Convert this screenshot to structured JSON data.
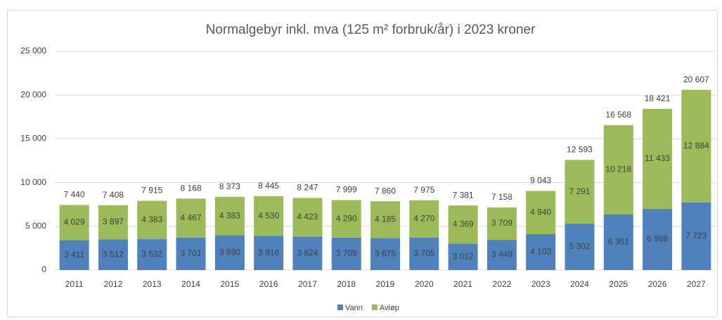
{
  "chart_data": {
    "type": "stacked_bar",
    "title": "Normalgebyr inkl. mva (125 m² forbruk/år) i 2023 kroner",
    "categories": [
      "2011",
      "2012",
      "2013",
      "2014",
      "2015",
      "2016",
      "2017",
      "2018",
      "2019",
      "2020",
      "2021",
      "2022",
      "2023",
      "2024",
      "2025",
      "2026",
      "2027"
    ],
    "series": [
      {
        "name": "Vann",
        "color": "#4f81bd",
        "values": [
          3411,
          3512,
          3532,
          3701,
          3990,
          3916,
          3824,
          3709,
          3675,
          3705,
          3012,
          3449,
          4103,
          5302,
          6351,
          6988,
          7723
        ],
        "value_labels": [
          "3 411",
          "3 512",
          "3 532",
          "3 701",
          "3 990",
          "3 916",
          "3 824",
          "3 709",
          "3 675",
          "3 705",
          "3 012",
          "3 449",
          "4 103",
          "5 302",
          "6 351",
          "6 988",
          "7 723"
        ]
      },
      {
        "name": "Avløp",
        "color": "#9bbb59",
        "values": [
          4029,
          3897,
          4383,
          4467,
          4383,
          4530,
          4423,
          4290,
          4185,
          4270,
          4369,
          3709,
          4940,
          7291,
          10218,
          11433,
          12884
        ],
        "value_labels": [
          "4 029",
          "3 897",
          "4 383",
          "4 467",
          "4 383",
          "4 530",
          "4 423",
          "4 290",
          "4 185",
          "4 270",
          "4 369",
          "3 709",
          "4 940",
          "7 291",
          "10 218",
          "11 433",
          "12 884"
        ]
      }
    ],
    "totals": [
      7440,
      7408,
      7915,
      8168,
      8373,
      8445,
      8247,
      7999,
      7860,
      7975,
      7381,
      7158,
      9043,
      12593,
      16568,
      18421,
      20607
    ],
    "total_labels": [
      "7 440",
      "7 408",
      "7 915",
      "8 168",
      "8 373",
      "8 445",
      "8 247",
      "7 999",
      "7 860",
      "7 975",
      "7 381",
      "7 158",
      "9 043",
      "12 593",
      "16 568",
      "18 421",
      "20 607"
    ],
    "ylim": [
      0,
      25000
    ],
    "yticks": [
      0,
      {
        "value": 5000,
        "label": "5 000"
      },
      {
        "value": 10000,
        "label": "10 000"
      },
      {
        "value": 15000,
        "label": "15 000"
      },
      {
        "value": 20000,
        "label": "20 000"
      },
      {
        "value": 25000,
        "label": "25 000"
      }
    ],
    "grid": true,
    "legend": "bottom"
  }
}
